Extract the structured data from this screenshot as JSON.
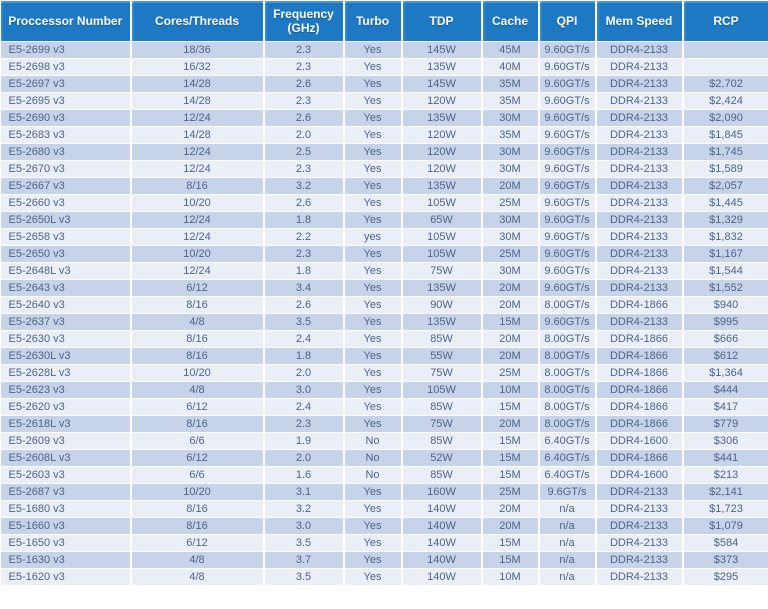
{
  "colors": {
    "header_bg": "#1e79c4",
    "header_text": "#ffffff",
    "row_dark": "#c6d3e9",
    "row_light": "#e9eef7",
    "cell_text": "#4f6488",
    "grid": "#ffffff"
  },
  "chart_data": {
    "type": "table",
    "columns": [
      "Proccessor Number",
      "Cores/Threads",
      "Frequency (GHz)",
      "Turbo",
      "TDP",
      "Cache",
      "QPI",
      "Mem Speed",
      "RCP"
    ],
    "rows": [
      [
        "E5-2699 v3",
        "18/36",
        "2.3",
        "Yes",
        "145W",
        "45M",
        "9.60GT/s",
        "DDR4-2133",
        ""
      ],
      [
        "E5-2698 v3",
        "16/32",
        "2.3",
        "Yes",
        "135W",
        "40M",
        "9.60GT/s",
        "DDR4-2133",
        ""
      ],
      [
        "E5-2697 v3",
        "14/28",
        "2.6",
        "Yes",
        "145W",
        "35M",
        "9.60GT/s",
        "DDR4-2133",
        "$2,702"
      ],
      [
        "E5-2695 v3",
        "14/28",
        "2.3",
        "Yes",
        "120W",
        "35M",
        "9.60GT/s",
        "DDR4-2133",
        "$2,424"
      ],
      [
        "E5-2690 v3",
        "12/24",
        "2.6",
        "Yes",
        "135W",
        "30M",
        "9.60GT/s",
        "DDR4-2133",
        "$2,090"
      ],
      [
        "E5-2683 v3",
        "14/28",
        "2.0",
        "Yes",
        "120W",
        "35M",
        "9.60GT/s",
        "DDR4-2133",
        "$1,845"
      ],
      [
        "E5-2680 v3",
        "12/24",
        "2.5",
        "Yes",
        "120W",
        "30M",
        "9.60GT/s",
        "DDR4-2133",
        "$1,745"
      ],
      [
        "E5-2670 v3",
        "12/24",
        "2.3",
        "Yes",
        "120W",
        "30M",
        "9.60GT/s",
        "DDR4-2133",
        "$1,589"
      ],
      [
        "E5-2667 v3",
        "8/16",
        "3.2",
        "Yes",
        "135W",
        "20M",
        "9.60GT/s",
        "DDR4-2133",
        "$2,057"
      ],
      [
        "E5-2660 v3",
        "10/20",
        "2.6",
        "Yes",
        "105W",
        "25M",
        "9.60GT/s",
        "DDR4-2133",
        "$1,445"
      ],
      [
        "E5-2650L v3",
        "12/24",
        "1.8",
        "Yes",
        "65W",
        "30M",
        "9.60GT/s",
        "DDR4-2133",
        "$1,329"
      ],
      [
        "E5-2658 v3",
        "12/24",
        "2.2",
        "yes",
        "105W",
        "30M",
        "9.60GT/s",
        "DDR4-2133",
        "$1,832"
      ],
      [
        "E5-2650 v3",
        "10/20",
        "2.3",
        "Yes",
        "105W",
        "25M",
        "9.60GT/s",
        "DDR4-2133",
        "$1,167"
      ],
      [
        "E5-2648L v3",
        "12/24",
        "1.8",
        "Yes",
        "75W",
        "30M",
        "9.60GT/s",
        "DDR4-2133",
        "$1,544"
      ],
      [
        "E5-2643 v3",
        "6/12",
        "3.4",
        "Yes",
        "135W",
        "20M",
        "9.60GT/s",
        "DDR4-2133",
        "$1,552"
      ],
      [
        "E5-2640 v3",
        "8/16",
        "2.6",
        "Yes",
        "90W",
        "20M",
        "8.00GT/s",
        "DDR4-1866",
        "$940"
      ],
      [
        "E5-2637 v3",
        "4/8",
        "3.5",
        "Yes",
        "135W",
        "15M",
        "9.60GT/s",
        "DDR4-2133",
        "$995"
      ],
      [
        "E5-2630 v3",
        "8/16",
        "2.4",
        "Yes",
        "85W",
        "20M",
        "8.00GT/s",
        "DDR4-1866",
        "$666"
      ],
      [
        "E5-2630L v3",
        "8/16",
        "1.8",
        "Yes",
        "55W",
        "20M",
        "8.00GT/s",
        "DDR4-1866",
        "$612"
      ],
      [
        "E5-2628L v3",
        "10/20",
        "2.0",
        "Yes",
        "75W",
        "25M",
        "8.00GT/s",
        "DDR4-1866",
        "$1,364"
      ],
      [
        "E5-2623 v3",
        "4/8",
        "3.0",
        "Yes",
        "105W",
        "10M",
        "8.00GT/s",
        "DDR4-1866",
        "$444"
      ],
      [
        "E5-2620 v3",
        "6/12",
        "2.4",
        "Yes",
        "85W",
        "15M",
        "8.00GT/s",
        "DDR4-1866",
        "$417"
      ],
      [
        "E5-2618L v3",
        "8/16",
        "2.3",
        "Yes",
        "75W",
        "20M",
        "8.00GT/s",
        "DDR4-1866",
        "$779"
      ],
      [
        "E5-2609 v3",
        "6/6",
        "1.9",
        "No",
        "85W",
        "15M",
        "6.40GT/s",
        "DDR4-1600",
        "$306"
      ],
      [
        "E5-2608L v3",
        "6/12",
        "2.0",
        "No",
        "52W",
        "15M",
        "6.40GT/s",
        "DDR4-1866",
        "$441"
      ],
      [
        "E5-2603 v3",
        "6/6",
        "1.6",
        "No",
        "85W",
        "15M",
        "6.40GT/s",
        "DDR4-1600",
        "$213"
      ],
      [
        "E5-2687 v3",
        "10/20",
        "3.1",
        "Yes",
        "160W",
        "25M",
        "9.6GT/s",
        "DDR4-2133",
        "$2,141"
      ],
      [
        "E5-1680 v3",
        "8/16",
        "3.2",
        "Yes",
        "140W",
        "20M",
        "n/a",
        "DDR4-2133",
        "$1,723"
      ],
      [
        "E5-1660 v3",
        "8/16",
        "3.0",
        "Yes",
        "140W",
        "20M",
        "n/a",
        "DDR4-2133",
        "$1,079"
      ],
      [
        "E5-1650 v3",
        "6/12",
        "3.5",
        "Yes",
        "140W",
        "15M",
        "n/a",
        "DDR4-2133",
        "$584"
      ],
      [
        "E5-1630 v3",
        "4/8",
        "3.7",
        "Yes",
        "140W",
        "15M",
        "n/a",
        "DDR4-2133",
        "$373"
      ],
      [
        "E5-1620 v3",
        "4/8",
        "3.5",
        "Yes",
        "140W",
        "10M",
        "n/a",
        "DDR4-2133",
        "$295"
      ]
    ]
  }
}
